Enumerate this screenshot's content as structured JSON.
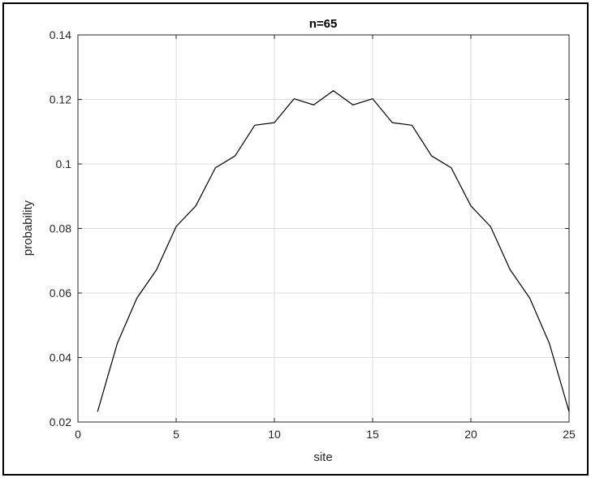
{
  "chart_data": {
    "type": "line",
    "title": "n=65",
    "xlabel": "site",
    "ylabel": "probability",
    "xlim": [
      0,
      25
    ],
    "ylim": [
      0.02,
      0.14
    ],
    "xticks": [
      0,
      5,
      10,
      15,
      20,
      25
    ],
    "yticks": [
      0.02,
      0.04,
      0.06,
      0.08,
      0.1,
      0.12,
      0.14
    ],
    "xtick_labels": [
      "0",
      "5",
      "10",
      "15",
      "20",
      "25"
    ],
    "ytick_labels": [
      "0.02",
      "0.04",
      "0.06",
      "0.08",
      "0.1",
      "0.12",
      "0.14"
    ],
    "grid": true,
    "line_color": "#000000",
    "grid_color": "#dcdcdc",
    "x": [
      1,
      2,
      3,
      4,
      5,
      6,
      7,
      8,
      9,
      10,
      11,
      12,
      13,
      14,
      15,
      16,
      17,
      18,
      19,
      20,
      21,
      22,
      23,
      24,
      25
    ],
    "values": [
      0.0232,
      0.0443,
      0.0584,
      0.0672,
      0.0806,
      0.087,
      0.0988,
      0.1025,
      0.112,
      0.1128,
      0.1202,
      0.1183,
      0.1227,
      0.1183,
      0.1202,
      0.1128,
      0.112,
      0.1025,
      0.0988,
      0.087,
      0.0806,
      0.0672,
      0.0584,
      0.0443,
      0.0232
    ]
  }
}
